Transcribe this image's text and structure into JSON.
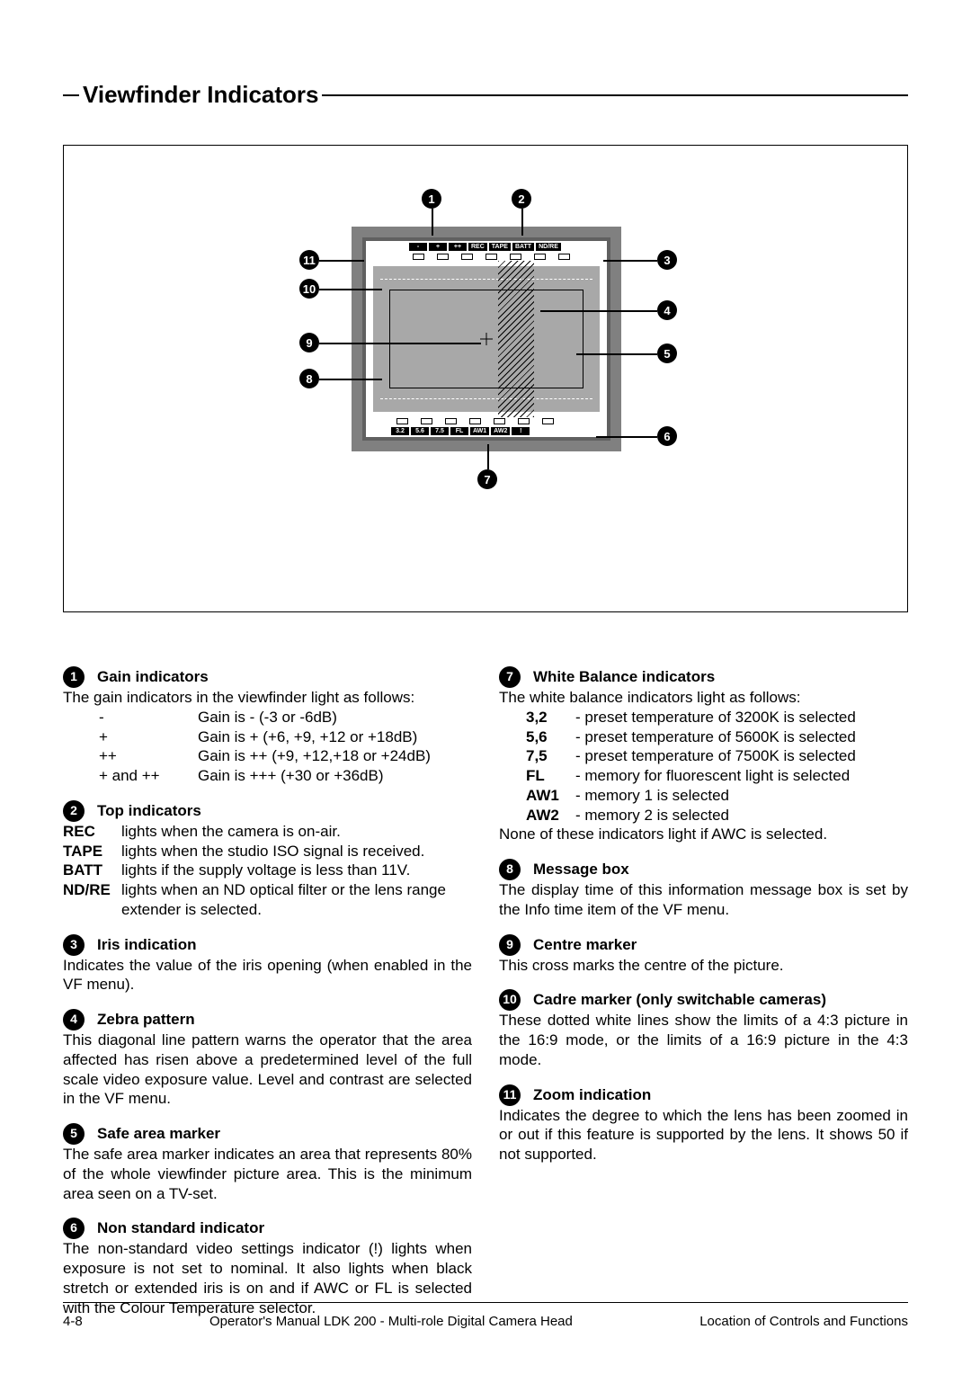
{
  "title": "Viewfinder  Indicators",
  "diagram": {
    "top_labels": [
      "-",
      "+",
      "++",
      "REC",
      "TAPE",
      "BATT",
      "ND/RE"
    ],
    "bottom_labels": [
      "3.2",
      "5.6",
      "7.5",
      "FL",
      "AW1",
      "AW2",
      "!"
    ]
  },
  "left_col": [
    {
      "num": "1",
      "title": "Gain indicators",
      "intro": "The gain indicators in the viewfinder light as follows:",
      "table": {
        "cls": "tbl-g",
        "rows": [
          {
            "k": "-",
            "v": "Gain is - (-3 or -6dB)",
            "kn": true
          },
          {
            "k": "+",
            "v": "Gain is + (+6, +9, +12 or +18dB)",
            "kn": true
          },
          {
            "k": "++",
            "v": "Gain is ++ (+9, +12,+18 or +24dB)",
            "kn": true
          },
          {
            "k": "+ and ++",
            "v": "Gain is +++ (+30 or +36dB)",
            "kn": true
          }
        ]
      }
    },
    {
      "num": "2",
      "title": "Top indicators",
      "table": {
        "cls": "tbl-t",
        "rows": [
          {
            "k": "REC",
            "v": "lights when the camera is on-air."
          },
          {
            "k": "TAPE",
            "v": "lights when the studio ISO signal is received."
          },
          {
            "k": "BATT",
            "v": "lights if the supply voltage is less than 11V."
          },
          {
            "k": "ND/RE",
            "v": "lights when an ND optical filter or the lens range extender is selected."
          }
        ]
      }
    },
    {
      "num": "3",
      "title": "Iris indication",
      "body": "Indicates the value of the iris opening (when enabled in the VF menu)."
    },
    {
      "num": "4",
      "title": "Zebra pattern",
      "body": "This diagonal line pattern warns the operator that the area affected has risen above a predetermined level of the full scale video exposure value. Level and contrast are selected in the VF menu."
    },
    {
      "num": "5",
      "title": "Safe area marker",
      "body": "The safe area marker indicates an area that represents 80% of the whole viewfinder picture area. This is the minimum area seen on a TV-set."
    },
    {
      "num": "6",
      "title": "Non standard indicator",
      "body": "The non-standard video settings indicator (!) lights when exposure is not set to nominal. It also lights when black stretch or extended iris is on and if AWC or FL is selected with the Colour Temperature selector."
    }
  ],
  "right_col": [
    {
      "num": "7",
      "title": "White Balance indicators",
      "intro": "The white balance indicators light as follows:",
      "table": {
        "cls": "tbl-w",
        "rows": [
          {
            "k": "3,2",
            "v": "- preset temperature of 3200K is selected"
          },
          {
            "k": "5,6",
            "v": "- preset temperature of 5600K is selected"
          },
          {
            "k": "7,5",
            "v": "- preset temperature of 7500K is selected"
          },
          {
            "k": "FL",
            "v": "- memory for fluorescent light is selected"
          },
          {
            "k": "AW1",
            "v": "- memory 1 is selected"
          },
          {
            "k": "AW2",
            "v": "- memory 2 is selected"
          }
        ]
      },
      "outro": "None of these indicators light if AWC is selected."
    },
    {
      "num": "8",
      "title": "Message box",
      "body": "The display time of this information message box is set by the Info time item of the VF menu."
    },
    {
      "num": "9",
      "title": "Centre marker",
      "body": "This cross marks the centre of the picture."
    },
    {
      "num": "10",
      "title": "Cadre marker (only switchable cameras)",
      "body": "These dotted white lines show the limits of a 4:3 picture in the 16:9 mode, or the limits of a 16:9 picture in the 4:3 mode."
    },
    {
      "num": "11",
      "title": "Zoom indication",
      "body": "Indicates the degree to which the lens has been zoomed in or out if this feature is supported by the lens. It shows 50 if not supported."
    }
  ],
  "footer": {
    "page": "4-8",
    "center": "Operator's Manual LDK 200 - Multi-role Digital Camera Head",
    "right": "Location of Controls and Functions"
  }
}
